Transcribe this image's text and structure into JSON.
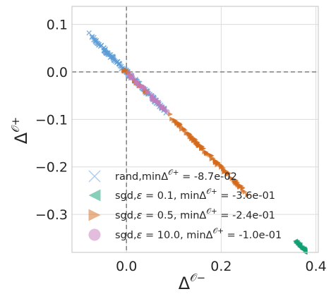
{
  "chart_data": {
    "type": "scatter",
    "xlabel": "Δ^{𝒪−}",
    "ylabel": "Δ^{𝒪+}",
    "xlim": [
      -0.115,
      0.405
    ],
    "ylim": [
      -0.38,
      0.138
    ],
    "x_ticks": [
      {
        "value": 0.0,
        "label": "0.0"
      },
      {
        "value": 0.2,
        "label": "0.2"
      },
      {
        "value": 0.4,
        "label": "0.4"
      }
    ],
    "y_ticks": [
      {
        "value": 0.1,
        "label": "0.1"
      },
      {
        "value": 0.0,
        "label": "0.0"
      },
      {
        "value": -0.1,
        "label": "−0.1"
      },
      {
        "value": -0.2,
        "label": "−0.2"
      },
      {
        "value": -0.3,
        "label": "−0.3"
      }
    ],
    "grid": true,
    "reference_lines": {
      "x": 0,
      "y": 0,
      "style": "dashed"
    },
    "legend_position": "lower-left",
    "series": [
      {
        "name": "rand,minΔ^{𝒪+} = -8.7e-02",
        "marker": "x",
        "color": "#5b9bd5",
        "spread": 0.004,
        "segments": [
          {
            "x_from": -0.087,
            "x_to": 0.095,
            "count": 140
          }
        ]
      },
      {
        "name": "sgd,ε = 0.1, minΔ^{𝒪+} = -3.6e-01",
        "marker": "triangle-left",
        "color": "#119f73",
        "spread": 0.003,
        "segments": [
          {
            "x_from": 0.355,
            "x_to": 0.38,
            "count": 40
          }
        ]
      },
      {
        "name": "sgd,ε = 0.5, minΔ^{𝒪+} = -2.4e-01",
        "marker": "triangle-right",
        "color": "#d46a1a",
        "spread": 0.004,
        "segments": [
          {
            "x_from": 0.085,
            "x_to": 0.26,
            "count": 110
          },
          {
            "x_from": -0.01,
            "x_to": 0.05,
            "count": 25
          }
        ]
      },
      {
        "name": "sgd,ε = 10.0, minΔ^{𝒪+} = -1.0e-01",
        "marker": "circle",
        "color": "#c77cbc",
        "spread": 0.004,
        "segments": [
          {
            "x_from": -0.005,
            "x_to": 0.09,
            "count": 40
          }
        ]
      }
    ],
    "legend_labels": [
      {
        "prefix": "rand,min",
        "delta": "Δ",
        "sup": "𝒪+",
        "suffix": " = -8.7e-02"
      },
      {
        "prefix": "sgd,",
        "eps": "ε",
        "epsval": " = 0.1, ",
        "min": "min",
        "delta": "Δ",
        "sup": "𝒪+",
        "suffix": " = -3.6e-01"
      },
      {
        "prefix": "sgd,",
        "eps": "ε",
        "epsval": " = 0.5, ",
        "min": "min",
        "delta": "Δ",
        "sup": "𝒪+",
        "suffix": " = -2.4e-01"
      },
      {
        "prefix": "sgd,",
        "eps": "ε",
        "epsval": " = 10.0, ",
        "min": "min",
        "delta": "Δ",
        "sup": "𝒪+",
        "suffix": " = -1.0e-01"
      }
    ]
  }
}
